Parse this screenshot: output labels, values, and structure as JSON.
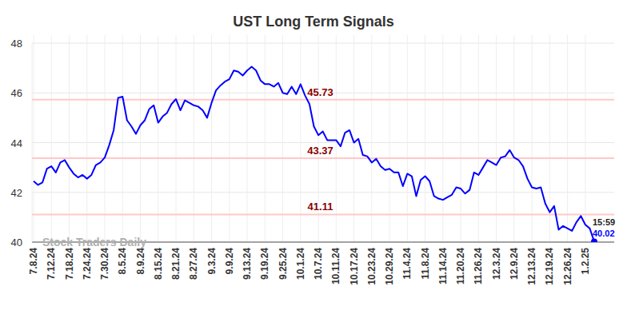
{
  "chart_data": {
    "type": "line",
    "title": "UST Long Term Signals",
    "categories": [
      "7.8.24",
      null,
      null,
      null,
      "7.12.24",
      null,
      null,
      null,
      "7.18.24",
      null,
      null,
      null,
      "7.24.24",
      null,
      null,
      null,
      "7.30.24",
      null,
      null,
      null,
      "8.5.24",
      null,
      null,
      null,
      "8.9.24",
      null,
      null,
      null,
      "8.15.24",
      null,
      null,
      null,
      "8.21.24",
      null,
      null,
      null,
      "8.27.24",
      null,
      null,
      null,
      "9.3.24",
      null,
      null,
      null,
      "9.9.24",
      null,
      null,
      null,
      "9.13.24",
      null,
      null,
      null,
      "9.19.24",
      null,
      null,
      null,
      "9.25.24",
      null,
      null,
      null,
      "10.1.24",
      null,
      null,
      null,
      "10.7.24",
      null,
      null,
      null,
      "10.11.24",
      null,
      null,
      null,
      "10.17.24",
      null,
      null,
      null,
      "10.23.24",
      null,
      null,
      null,
      "10.29.24",
      null,
      null,
      null,
      "11.4.24",
      null,
      null,
      null,
      "11.8.24",
      null,
      null,
      null,
      "11.14.24",
      null,
      null,
      null,
      "11.20.24",
      null,
      null,
      null,
      "11.26.24",
      null,
      null,
      null,
      "12.3.24",
      null,
      null,
      null,
      "12.9.24",
      null,
      null,
      null,
      "12.13.24",
      null,
      null,
      null,
      "12.19.24",
      null,
      null,
      null,
      "12.26.24",
      null,
      null,
      null,
      "1.2.25",
      null,
      null
    ],
    "values": [
      42.45,
      42.3,
      42.4,
      42.95,
      43.05,
      42.8,
      43.2,
      43.3,
      43.0,
      42.75,
      42.6,
      42.7,
      42.55,
      42.7,
      43.1,
      43.2,
      43.4,
      43.9,
      44.5,
      45.8,
      45.85,
      44.9,
      44.65,
      44.35,
      44.7,
      44.9,
      45.35,
      45.5,
      44.8,
      45.05,
      45.2,
      45.55,
      45.75,
      45.3,
      45.7,
      45.6,
      45.5,
      45.45,
      45.3,
      45.0,
      45.6,
      46.1,
      46.3,
      46.45,
      46.55,
      46.9,
      46.85,
      46.7,
      46.9,
      47.05,
      46.9,
      46.5,
      46.35,
      46.35,
      46.25,
      46.4,
      46.0,
      45.95,
      46.25,
      45.95,
      46.35,
      45.9,
      45.55,
      44.65,
      44.3,
      44.45,
      44.1,
      44.1,
      44.1,
      43.85,
      44.4,
      44.5,
      44.0,
      44.15,
      43.5,
      43.45,
      43.2,
      43.35,
      43.05,
      42.9,
      42.95,
      42.8,
      42.8,
      42.25,
      42.75,
      42.65,
      41.85,
      42.5,
      42.65,
      42.45,
      41.85,
      41.75,
      41.7,
      41.8,
      41.9,
      42.2,
      42.15,
      41.95,
      42.1,
      42.8,
      42.7,
      43.0,
      43.3,
      43.2,
      43.1,
      43.4,
      43.45,
      43.7,
      43.4,
      43.3,
      43.05,
      42.55,
      42.2,
      42.15,
      42.2,
      41.55,
      41.2,
      41.45,
      40.5,
      40.65,
      40.55,
      40.45,
      40.8,
      41.05,
      40.7,
      40.55,
      40.02
    ],
    "color": "#0000ff",
    "ylim": [
      40,
      48
    ],
    "yticks": [
      40,
      42,
      44,
      46,
      48
    ],
    "grid": true,
    "reference_lines": [
      45.73,
      43.37,
      41.11
    ],
    "last_time": "15:59",
    "watermark": "Stock Traders Daily"
  }
}
